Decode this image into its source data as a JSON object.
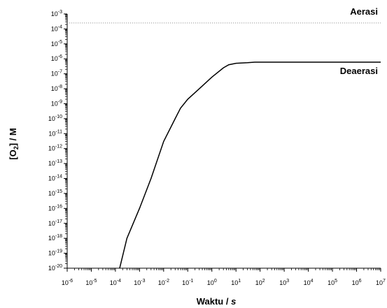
{
  "chart_data": {
    "type": "line",
    "title": "",
    "xlabel": {
      "main": "Waktu / ",
      "unit": "s"
    },
    "ylabel": {
      "bracket_open": "[O",
      "subscript": "2",
      "rest": "] / M"
    },
    "x_scale": "log",
    "y_scale": "log",
    "xlim": [
      1e-06,
      10000000.0
    ],
    "ylim": [
      1e-20,
      0.001
    ],
    "x_tick_exponents": [
      -6,
      -5,
      -4,
      -3,
      -2,
      -1,
      0,
      1,
      2,
      3,
      4,
      5,
      6,
      7
    ],
    "y_tick_exponents": [
      -3,
      -4,
      -5,
      -6,
      -7,
      -8,
      -9,
      -10,
      -11,
      -12,
      -13,
      -14,
      -15,
      -16,
      -17,
      -18,
      -19,
      -20
    ],
    "grid": false,
    "series": [
      {
        "name": "Aerasi",
        "style": "dotted",
        "color": "#999999",
        "x": [
          1e-06,
          10000000.0
        ],
        "y": [
          0.00025,
          0.00025
        ]
      },
      {
        "name": "Deaerasi",
        "style": "solid",
        "color": "#000000",
        "x": [
          0.00015,
          0.0003,
          0.001,
          0.003,
          0.01,
          0.03,
          0.05,
          0.1,
          0.3,
          1,
          3,
          5,
          10,
          30,
          60,
          100,
          1000.0,
          10000.0,
          100000.0,
          1000000.0,
          10000000.0
        ],
        "y": [
          1e-20,
          1e-18,
          1e-16,
          1e-14,
          3e-12,
          1e-10,
          5e-10,
          2e-09,
          1e-08,
          6e-08,
          2.5e-07,
          4e-07,
          5e-07,
          5.5e-07,
          6e-07,
          6e-07,
          6e-07,
          6e-07,
          6e-07,
          6e-07,
          6e-07
        ]
      }
    ]
  }
}
